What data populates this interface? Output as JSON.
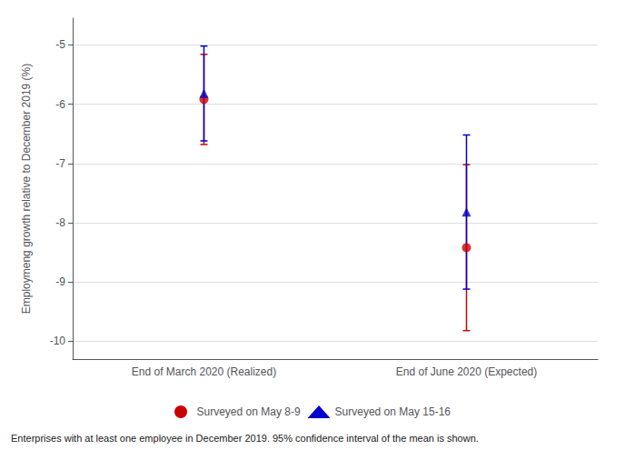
{
  "chart_data": {
    "type": "scatter",
    "categories": [
      "End of March 2020 (Realized)",
      "End of June 2020 (Expected)"
    ],
    "series": [
      {
        "name": "Surveyed on May 8-9",
        "color": "#cc0000",
        "marker": "circle",
        "values": [
          -5.92,
          -8.42
        ],
        "y_lower": [
          -6.68,
          -9.82
        ],
        "y_upper": [
          -5.16,
          -7.02
        ]
      },
      {
        "name": "Surveyed on May 15-16",
        "color": "#0000cc",
        "marker": "triangle",
        "values": [
          -5.82,
          -7.82
        ],
        "y_lower": [
          -6.62,
          -9.12
        ],
        "y_upper": [
          -5.02,
          -6.52
        ]
      }
    ],
    "ylabel": "Employmeng growth relative to December 2019 (%)",
    "ylim": [
      -10.3,
      -4.55
    ],
    "yticks": [
      -10,
      -9,
      -8,
      -7,
      -6,
      -5
    ],
    "grid": true,
    "legend": "bottom",
    "footnote": "Enterprises with at least one employee in December 2019. 95% confidence interval of the mean is shown."
  }
}
